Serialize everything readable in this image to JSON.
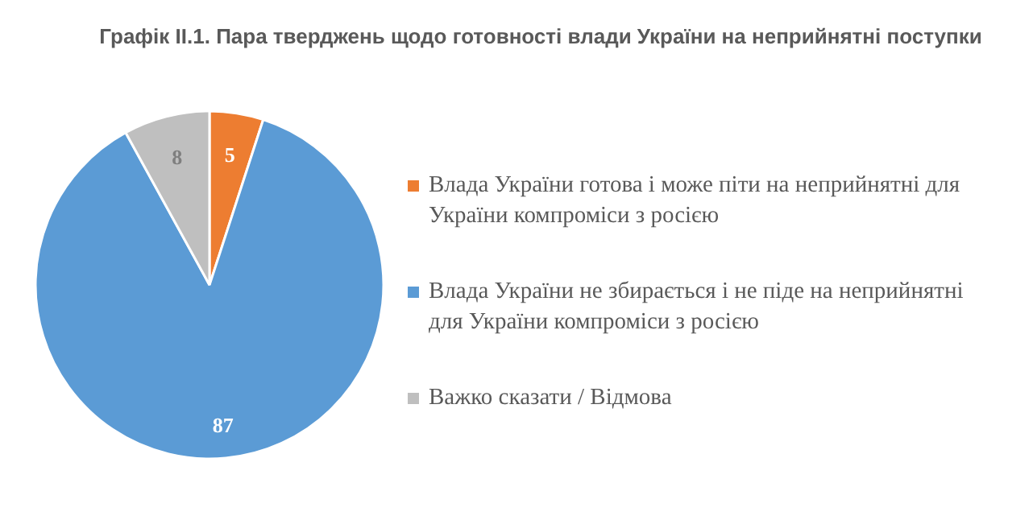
{
  "chart_data": {
    "type": "pie",
    "title": "Графік ІІ.1. Пара тверджень щодо готовності влади України на неприйнятні поступки",
    "categories": [
      "Влада України готова і може піти на неприйнятні для України компроміси з росією",
      "Влада України не збирається і не піде на неприйнятні для України компроміси з росією",
      "Важко сказати / Відмова"
    ],
    "values": [
      5,
      87,
      8
    ],
    "colors": [
      "#ed7d31",
      "#5b9bd5",
      "#bfbfbf"
    ],
    "data_labels": true,
    "legend": "right"
  }
}
